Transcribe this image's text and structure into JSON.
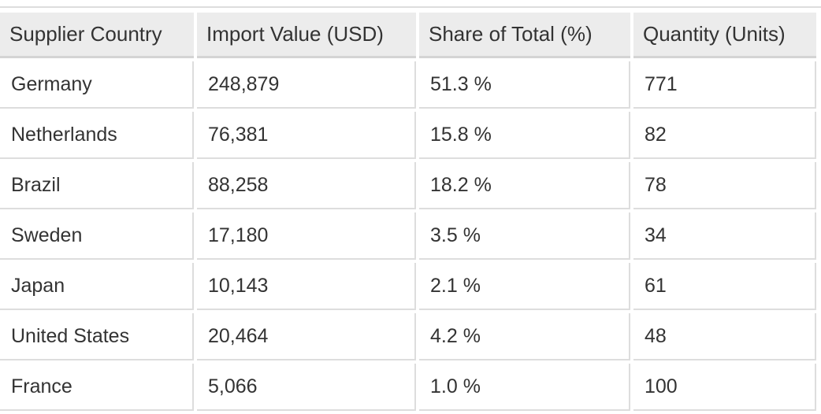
{
  "chart_data": {
    "type": "table",
    "columns": [
      "Supplier Country",
      "Import Value (USD)",
      "Share of Total (%)",
      "Quantity (Units)"
    ],
    "rows": [
      [
        "Germany",
        "248,879",
        "51.3 %",
        "771"
      ],
      [
        "Netherlands",
        "76,381",
        "15.8 %",
        "82"
      ],
      [
        "Brazil",
        "88,258",
        "18.2 %",
        "78"
      ],
      [
        "Sweden",
        "17,180",
        "3.5 %",
        "34"
      ],
      [
        "Japan",
        "10,143",
        "2.1 %",
        "61"
      ],
      [
        "United States",
        "20,464",
        "4.2 %",
        "48"
      ],
      [
        "France",
        "5,066",
        "1.0 %",
        "100"
      ]
    ]
  }
}
